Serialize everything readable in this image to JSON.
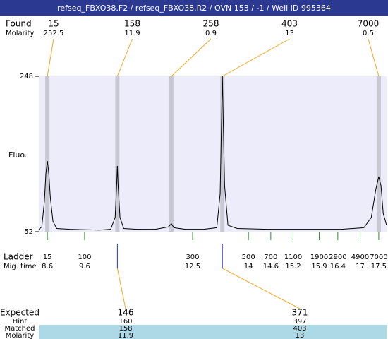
{
  "header": {
    "title": "refseq_FBXO38.F2 / refseq_FBXO38.R2 / OVN 153 / -1 / Well ID 995364"
  },
  "found": {
    "label": "Found",
    "molarity_label": "Molarity",
    "sizes": [
      "15",
      "158",
      "258",
      "403",
      "7000"
    ],
    "molarity": [
      "252.5",
      "11.9",
      "0.9",
      "13",
      "0.5"
    ]
  },
  "chart_data": {
    "type": "line",
    "y_label": "Fluo.",
    "color": "#000000",
    "xlim": [
      8.37,
      17.71
    ],
    "ylim": [
      52,
      248
    ],
    "yticks": [
      52,
      248
    ],
    "peaks": [
      8.6,
      10.48,
      11.93,
      13.3,
      17.5
    ],
    "x": [
      8.37,
      8.45,
      8.52,
      8.56,
      8.6,
      8.64,
      8.68,
      8.75,
      8.85,
      9.2,
      9.6,
      10.0,
      10.3,
      10.42,
      10.46,
      10.48,
      10.5,
      10.55,
      10.65,
      11.0,
      11.5,
      11.85,
      11.93,
      12.0,
      12.3,
      12.8,
      13.15,
      13.24,
      13.28,
      13.3,
      13.32,
      13.36,
      13.45,
      13.7,
      14.5,
      15.5,
      16.5,
      17.1,
      17.3,
      17.42,
      17.5,
      17.56,
      17.62,
      17.71
    ],
    "values": [
      55,
      58,
      90,
      125,
      141,
      125,
      95,
      65,
      56,
      55,
      54.5,
      54,
      55,
      70,
      110,
      135,
      110,
      70,
      56,
      55,
      55,
      58,
      62,
      57,
      55,
      55,
      57,
      100,
      200,
      248,
      200,
      110,
      60,
      56,
      55,
      55,
      55,
      57,
      70,
      105,
      121.5,
      110,
      75,
      60
    ]
  },
  "ladder": {
    "label": "Ladder",
    "time_label": "Mig. time",
    "sizes": [
      "15",
      "100",
      "300",
      "500",
      "700",
      "1100",
      "1900",
      "2900",
      "4900",
      "7000"
    ],
    "times": [
      8.6,
      9.6,
      12.5,
      14,
      14.6,
      15.2,
      15.9,
      16.4,
      17,
      17.5
    ]
  },
  "expected": {
    "labels": [
      "Expected",
      "Hint",
      "Matched",
      "Molarity"
    ],
    "columns": [
      [
        "146",
        "160",
        "158",
        "11.9"
      ],
      [
        "371",
        "397",
        "403",
        "13"
      ]
    ]
  }
}
